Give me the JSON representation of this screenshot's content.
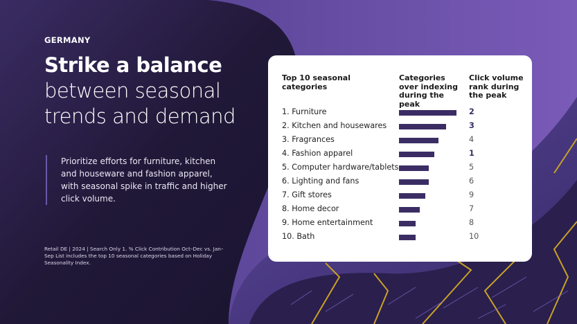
{
  "country": "GERMANY",
  "title_bold": "Strike a balance",
  "title_rest": "between seasonal trends and demand",
  "description": "Prioritize efforts for furniture, kitchen and houseware and fashion apparel, with seasonal spike in traffic and higher click volume.",
  "footnote": "Retail DE | 2024 | Search Only 1. % Click Contribution Oct–Dec vs. Jan–Sep List includes the top 10 seasonal categories based on Holiday Seasonality Index.",
  "colors": {
    "bar": "#3b2d63",
    "accent": "#6b58a8",
    "background": "#1c1530",
    "pattern_line": "#c9a227"
  },
  "chart_data": {
    "type": "bar",
    "orientation": "horizontal",
    "headers": [
      "Top 10 seasonal categories",
      "Categories over indexing during the peak",
      "Click volume rank during the peak"
    ],
    "categories": [
      "1. Furniture",
      "2. Kitchen and housewares",
      "3. Fragrances",
      "4. Fashion apparel",
      "5. Computer hardware/tablets",
      "6. Lighting and fans",
      "7. Gift stores",
      "8. Home decor",
      "9. Home entertainment",
      "10. Bath"
    ],
    "values": [
      100,
      82,
      69,
      62,
      52,
      52,
      46,
      36,
      29,
      29
    ],
    "value_note": "relative bar length, no axis printed",
    "ranks": [
      "2",
      "3",
      "4",
      "1",
      "5",
      "6",
      "9",
      "7",
      "8",
      "10"
    ],
    "highlighted_ranks": [
      true,
      true,
      false,
      true,
      false,
      false,
      false,
      false,
      false,
      false
    ]
  }
}
